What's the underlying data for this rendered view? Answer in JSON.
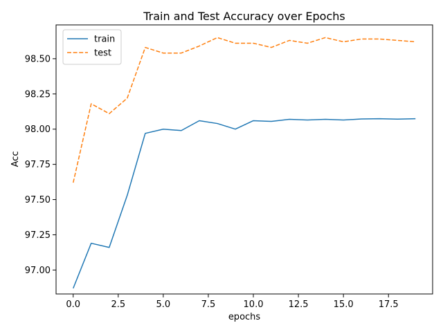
{
  "chart_data": {
    "type": "line",
    "title": "Train and Test Accuracy over Epochs",
    "xlabel": "epochs",
    "ylabel": "Acc",
    "xlim": [
      -0.95,
      19.95
    ],
    "ylim": [
      96.83,
      98.74
    ],
    "x_ticks": [
      0.0,
      2.5,
      5.0,
      7.5,
      10.0,
      12.5,
      15.0,
      17.5
    ],
    "x_tick_labels": [
      "0.0",
      "2.5",
      "5.0",
      "7.5",
      "10.0",
      "12.5",
      "15.0",
      "17.5"
    ],
    "y_ticks": [
      97.0,
      97.25,
      97.5,
      97.75,
      98.0,
      98.25,
      98.5
    ],
    "y_tick_labels": [
      "97.00",
      "97.25",
      "97.50",
      "97.75",
      "98.00",
      "98.25",
      "98.50"
    ],
    "grid": false,
    "legend_position": "upper-left",
    "x": [
      0,
      1,
      2,
      3,
      4,
      5,
      6,
      7,
      8,
      9,
      10,
      11,
      12,
      13,
      14,
      15,
      16,
      17,
      18,
      19
    ],
    "series": [
      {
        "name": "train",
        "color": "#1f77b4",
        "style": "solid",
        "values": [
          96.87,
          97.19,
          97.16,
          97.53,
          97.97,
          98.0,
          97.99,
          98.06,
          98.04,
          98.0,
          98.06,
          98.055,
          98.07,
          98.065,
          98.07,
          98.065,
          98.072,
          98.074,
          98.071,
          98.074
        ]
      },
      {
        "name": "test",
        "color": "#ff7f0e",
        "style": "dashed",
        "values": [
          97.62,
          98.18,
          98.11,
          98.22,
          98.58,
          98.54,
          98.54,
          98.59,
          98.65,
          98.61,
          98.61,
          98.58,
          98.63,
          98.61,
          98.65,
          98.62,
          98.64,
          98.64,
          98.63,
          98.62
        ]
      }
    ]
  }
}
